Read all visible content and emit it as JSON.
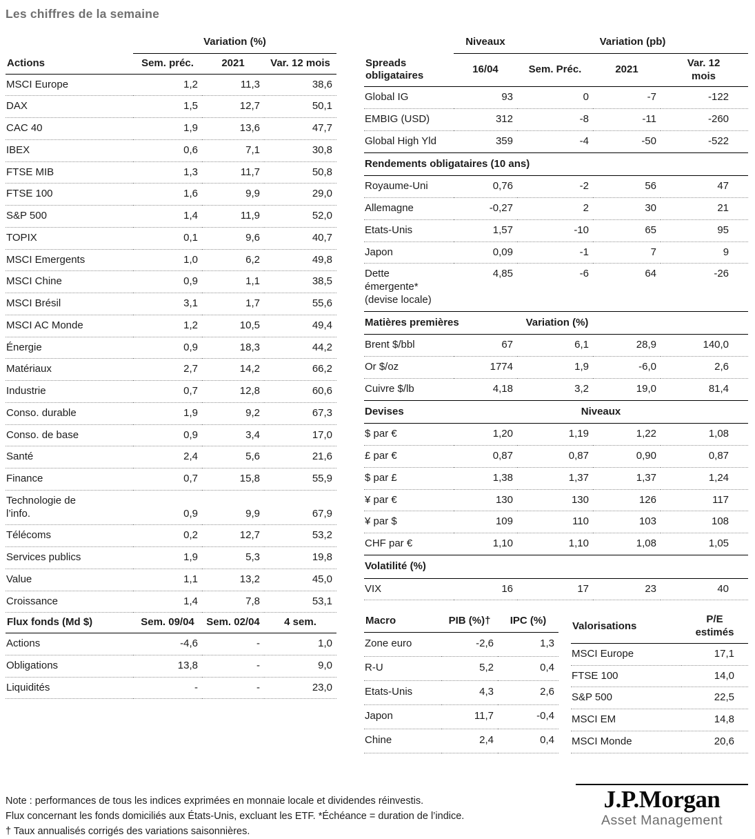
{
  "page": {
    "title": "Les chiffres de la semaine"
  },
  "actions": {
    "group_header": "Variation (%)",
    "col_label": "Actions",
    "col1": "Sem. préc.",
    "col2": "2021",
    "col3": "Var. 12 mois",
    "rows": [
      {
        "label": "MSCI Europe",
        "values": [
          "1,2",
          "11,3",
          "38,6"
        ]
      },
      {
        "label": "DAX",
        "values": [
          "1,5",
          "12,7",
          "50,1"
        ]
      },
      {
        "label": "CAC 40",
        "values": [
          "1,9",
          "13,6",
          "47,7"
        ]
      },
      {
        "label": "IBEX",
        "values": [
          "0,6",
          "7,1",
          "30,8"
        ]
      },
      {
        "label": "FTSE MIB",
        "values": [
          "1,3",
          "11,7",
          "50,8"
        ]
      },
      {
        "label": "FTSE 100",
        "values": [
          "1,6",
          "9,9",
          "29,0"
        ]
      },
      {
        "label": "S&P 500",
        "values": [
          "1,4",
          "11,9",
          "52,0"
        ]
      },
      {
        "label": "TOPIX",
        "values": [
          "0,1",
          "9,6",
          "40,7"
        ]
      },
      {
        "label": "MSCI Emergents",
        "values": [
          "1,0",
          "6,2",
          "49,8"
        ]
      },
      {
        "label": "MSCI Chine",
        "values": [
          "0,9",
          "1,1",
          "38,5"
        ]
      },
      {
        "label": "MSCI Brésil",
        "values": [
          "3,1",
          "1,7",
          "55,6"
        ]
      },
      {
        "label": "MSCI AC Monde",
        "values": [
          "1,2",
          "10,5",
          "49,4"
        ]
      },
      {
        "label": "Énergie",
        "values": [
          "0,9",
          "18,3",
          "44,2"
        ]
      },
      {
        "label": "Matériaux",
        "values": [
          "2,7",
          "14,2",
          "66,2"
        ]
      },
      {
        "label": "Industrie",
        "values": [
          "0,7",
          "12,8",
          "60,6"
        ]
      },
      {
        "label": "Conso. durable",
        "values": [
          "1,9",
          "9,2",
          "67,3"
        ]
      },
      {
        "label": "Conso. de base",
        "values": [
          "0,9",
          "3,4",
          "17,0"
        ]
      },
      {
        "label": "Santé",
        "values": [
          "2,4",
          "5,6",
          "21,6"
        ]
      },
      {
        "label": "Finance",
        "values": [
          "0,7",
          "15,8",
          "55,9"
        ]
      },
      {
        "label": "Technologie de l’info.",
        "values": [
          "0,9",
          "9,9",
          "67,9"
        ]
      },
      {
        "label": "Télécoms",
        "values": [
          "0,2",
          "12,7",
          "53,2"
        ]
      },
      {
        "label": "Services publics",
        "values": [
          "1,9",
          "5,3",
          "19,8"
        ]
      },
      {
        "label": "Value",
        "values": [
          "1,1",
          "13,2",
          "45,0"
        ]
      },
      {
        "label": "Croissance",
        "values": [
          "1,4",
          "7,8",
          "53,1"
        ]
      }
    ]
  },
  "flux": {
    "col_label": "Flux fonds (Md $)",
    "col1": "Sem. 09/04",
    "col2": "Sem. 02/04",
    "col3": "4 sem.",
    "rows": [
      {
        "label": "Actions",
        "values": [
          "-4,6",
          "-",
          "1,0"
        ]
      },
      {
        "label": "Obligations",
        "values": [
          "13,8",
          "-",
          "9,0"
        ]
      },
      {
        "label": "Liquidités",
        "values": [
          "-",
          "-",
          "23,0"
        ]
      }
    ]
  },
  "spreads": {
    "group_niveaux": "Niveaux",
    "group_variation": "Variation (pb)",
    "col_label": "Spreads obligataires",
    "col1": "16/04",
    "col2": "Sem. Préc.",
    "col3": "2021",
    "col4": "Var. 12 mois",
    "rows": [
      {
        "label": "Global IG",
        "values": [
          "93",
          "0",
          "-7",
          "-122"
        ]
      },
      {
        "label": "EMBIG (USD)",
        "values": [
          "312",
          "-8",
          "-11",
          "-260"
        ]
      },
      {
        "label": "Global High Yld",
        "values": [
          "359",
          "-4",
          "-50",
          "-522"
        ]
      }
    ]
  },
  "rendements": {
    "title": "Rendements obligataires (10 ans)",
    "rows": [
      {
        "label": "Royaume-Uni",
        "values": [
          "0,76",
          "-2",
          "56",
          "47"
        ]
      },
      {
        "label": "Allemagne",
        "values": [
          "-0,27",
          "2",
          "30",
          "21"
        ]
      },
      {
        "label": "Etats-Unis",
        "values": [
          "1,57",
          "-10",
          "65",
          "95"
        ]
      },
      {
        "label": "Japon",
        "values": [
          "0,09",
          "-1",
          "7",
          "9"
        ]
      },
      {
        "label": "Dette émergente* (devise locale)",
        "values": [
          "4,85",
          "-6",
          "64",
          "-26"
        ]
      }
    ]
  },
  "matieres": {
    "title": "Matières premières",
    "group_header": "Variation (%)",
    "rows": [
      {
        "label": "Brent $/bbl",
        "values": [
          "67",
          "6,1",
          "28,9",
          "140,0"
        ]
      },
      {
        "label": "Or $/oz",
        "values": [
          "1774",
          "1,9",
          "-6,0",
          "2,6"
        ]
      },
      {
        "label": "Cuivre $/lb",
        "values": [
          "4,18",
          "3,2",
          "19,0",
          "81,4"
        ]
      }
    ]
  },
  "devises": {
    "title": "Devises",
    "group_header": "Niveaux",
    "rows": [
      {
        "label": "$ par €",
        "values": [
          "1,20",
          "1,19",
          "1,22",
          "1,08"
        ]
      },
      {
        "label": "£ par €",
        "values": [
          "0,87",
          "0,87",
          "0,90",
          "0,87"
        ]
      },
      {
        "label": "$ par £",
        "values": [
          "1,38",
          "1,37",
          "1,37",
          "1,24"
        ]
      },
      {
        "label": "¥ par €",
        "values": [
          "130",
          "130",
          "126",
          "117"
        ]
      },
      {
        "label": "¥ par $",
        "values": [
          "109",
          "110",
          "103",
          "108"
        ]
      },
      {
        "label": "CHF par €",
        "values": [
          "1,10",
          "1,10",
          "1,08",
          "1,05"
        ]
      }
    ]
  },
  "volatilite": {
    "title": "Volatilité (%)",
    "rows": [
      {
        "label": "VIX",
        "values": [
          "16",
          "17",
          "23",
          "40"
        ]
      }
    ]
  },
  "macro": {
    "col_label": "Macro",
    "col1": "PIB (%)†",
    "col2": "IPC (%)",
    "rows": [
      {
        "label": "Zone euro",
        "values": [
          "-2,6",
          "1,3"
        ]
      },
      {
        "label": "R-U",
        "values": [
          "5,2",
          "0,4"
        ]
      },
      {
        "label": "Etats-Unis",
        "values": [
          "4,3",
          "2,6"
        ]
      },
      {
        "label": "Japon",
        "values": [
          "11,7",
          "-0,4"
        ]
      },
      {
        "label": "Chine",
        "values": [
          "2,4",
          "0,4"
        ]
      }
    ]
  },
  "valorisations": {
    "col_label": "Valorisations",
    "col1": "P/E estimés",
    "rows": [
      {
        "label": "MSCI Europe",
        "values": [
          "17,1"
        ]
      },
      {
        "label": "FTSE 100",
        "values": [
          "14,0"
        ]
      },
      {
        "label": "S&P 500",
        "values": [
          "22,5"
        ]
      },
      {
        "label": "MSCI EM",
        "values": [
          "14,8"
        ]
      },
      {
        "label": "MSCI Monde",
        "values": [
          "20,6"
        ]
      }
    ]
  },
  "footnotes": {
    "line1": "Note : performances de tous les indices exprimées en monnaie locale et dividendes réinvestis.",
    "line2": "Flux concernant les fonds domiciliés aux États-Unis, excluant les ETF. *Échéance = duration de l’indice.",
    "line3": "† Taux annualisés corrigés des variations saisonnières."
  },
  "logo": {
    "brand": "J.P.Morgan",
    "division": "Asset Management"
  }
}
